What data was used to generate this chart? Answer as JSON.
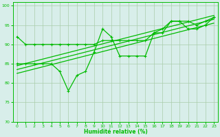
{
  "xlabel": "Humidité relative (%)",
  "background_color": "#d8eeea",
  "grid_color": "#aaccaa",
  "line_color": "#00bb00",
  "xlim": [
    -0.5,
    23.5
  ],
  "ylim": [
    70,
    101
  ],
  "yticks": [
    70,
    75,
    80,
    85,
    90,
    95,
    100
  ],
  "xticks": [
    0,
    1,
    2,
    3,
    4,
    5,
    6,
    7,
    8,
    9,
    10,
    11,
    12,
    13,
    14,
    15,
    16,
    17,
    18,
    19,
    20,
    21,
    22,
    23
  ],
  "series1_x": [
    0,
    1,
    2,
    3,
    4,
    5,
    6,
    7,
    8,
    9,
    10,
    11,
    12,
    13,
    14,
    15,
    16,
    17,
    18,
    19,
    20,
    21,
    22,
    23
  ],
  "series1_y": [
    92,
    90,
    90,
    90,
    90,
    90,
    90,
    90,
    90,
    90,
    91,
    91,
    91,
    91,
    91,
    91,
    93,
    94,
    96,
    96,
    96,
    95,
    96,
    97
  ],
  "series2_x": [
    0,
    1,
    2,
    3,
    4,
    5,
    6,
    7,
    8,
    9,
    10,
    11,
    12,
    13,
    14,
    15,
    16,
    17,
    18,
    19,
    20,
    21,
    22,
    23
  ],
  "series2_y": [
    85,
    85,
    85,
    85,
    85,
    83,
    78,
    82,
    83,
    88,
    94,
    92,
    87,
    87,
    87,
    87,
    93,
    93,
    96,
    96,
    94,
    94,
    95,
    97
  ],
  "reg_lines": [
    {
      "x0": 0,
      "y0": 84.5,
      "x1": 23,
      "y1": 97.5
    },
    {
      "x0": 0,
      "y0": 83.5,
      "x1": 23,
      "y1": 96.5
    },
    {
      "x0": 0,
      "y0": 82.5,
      "x1": 23,
      "y1": 95.5
    }
  ]
}
